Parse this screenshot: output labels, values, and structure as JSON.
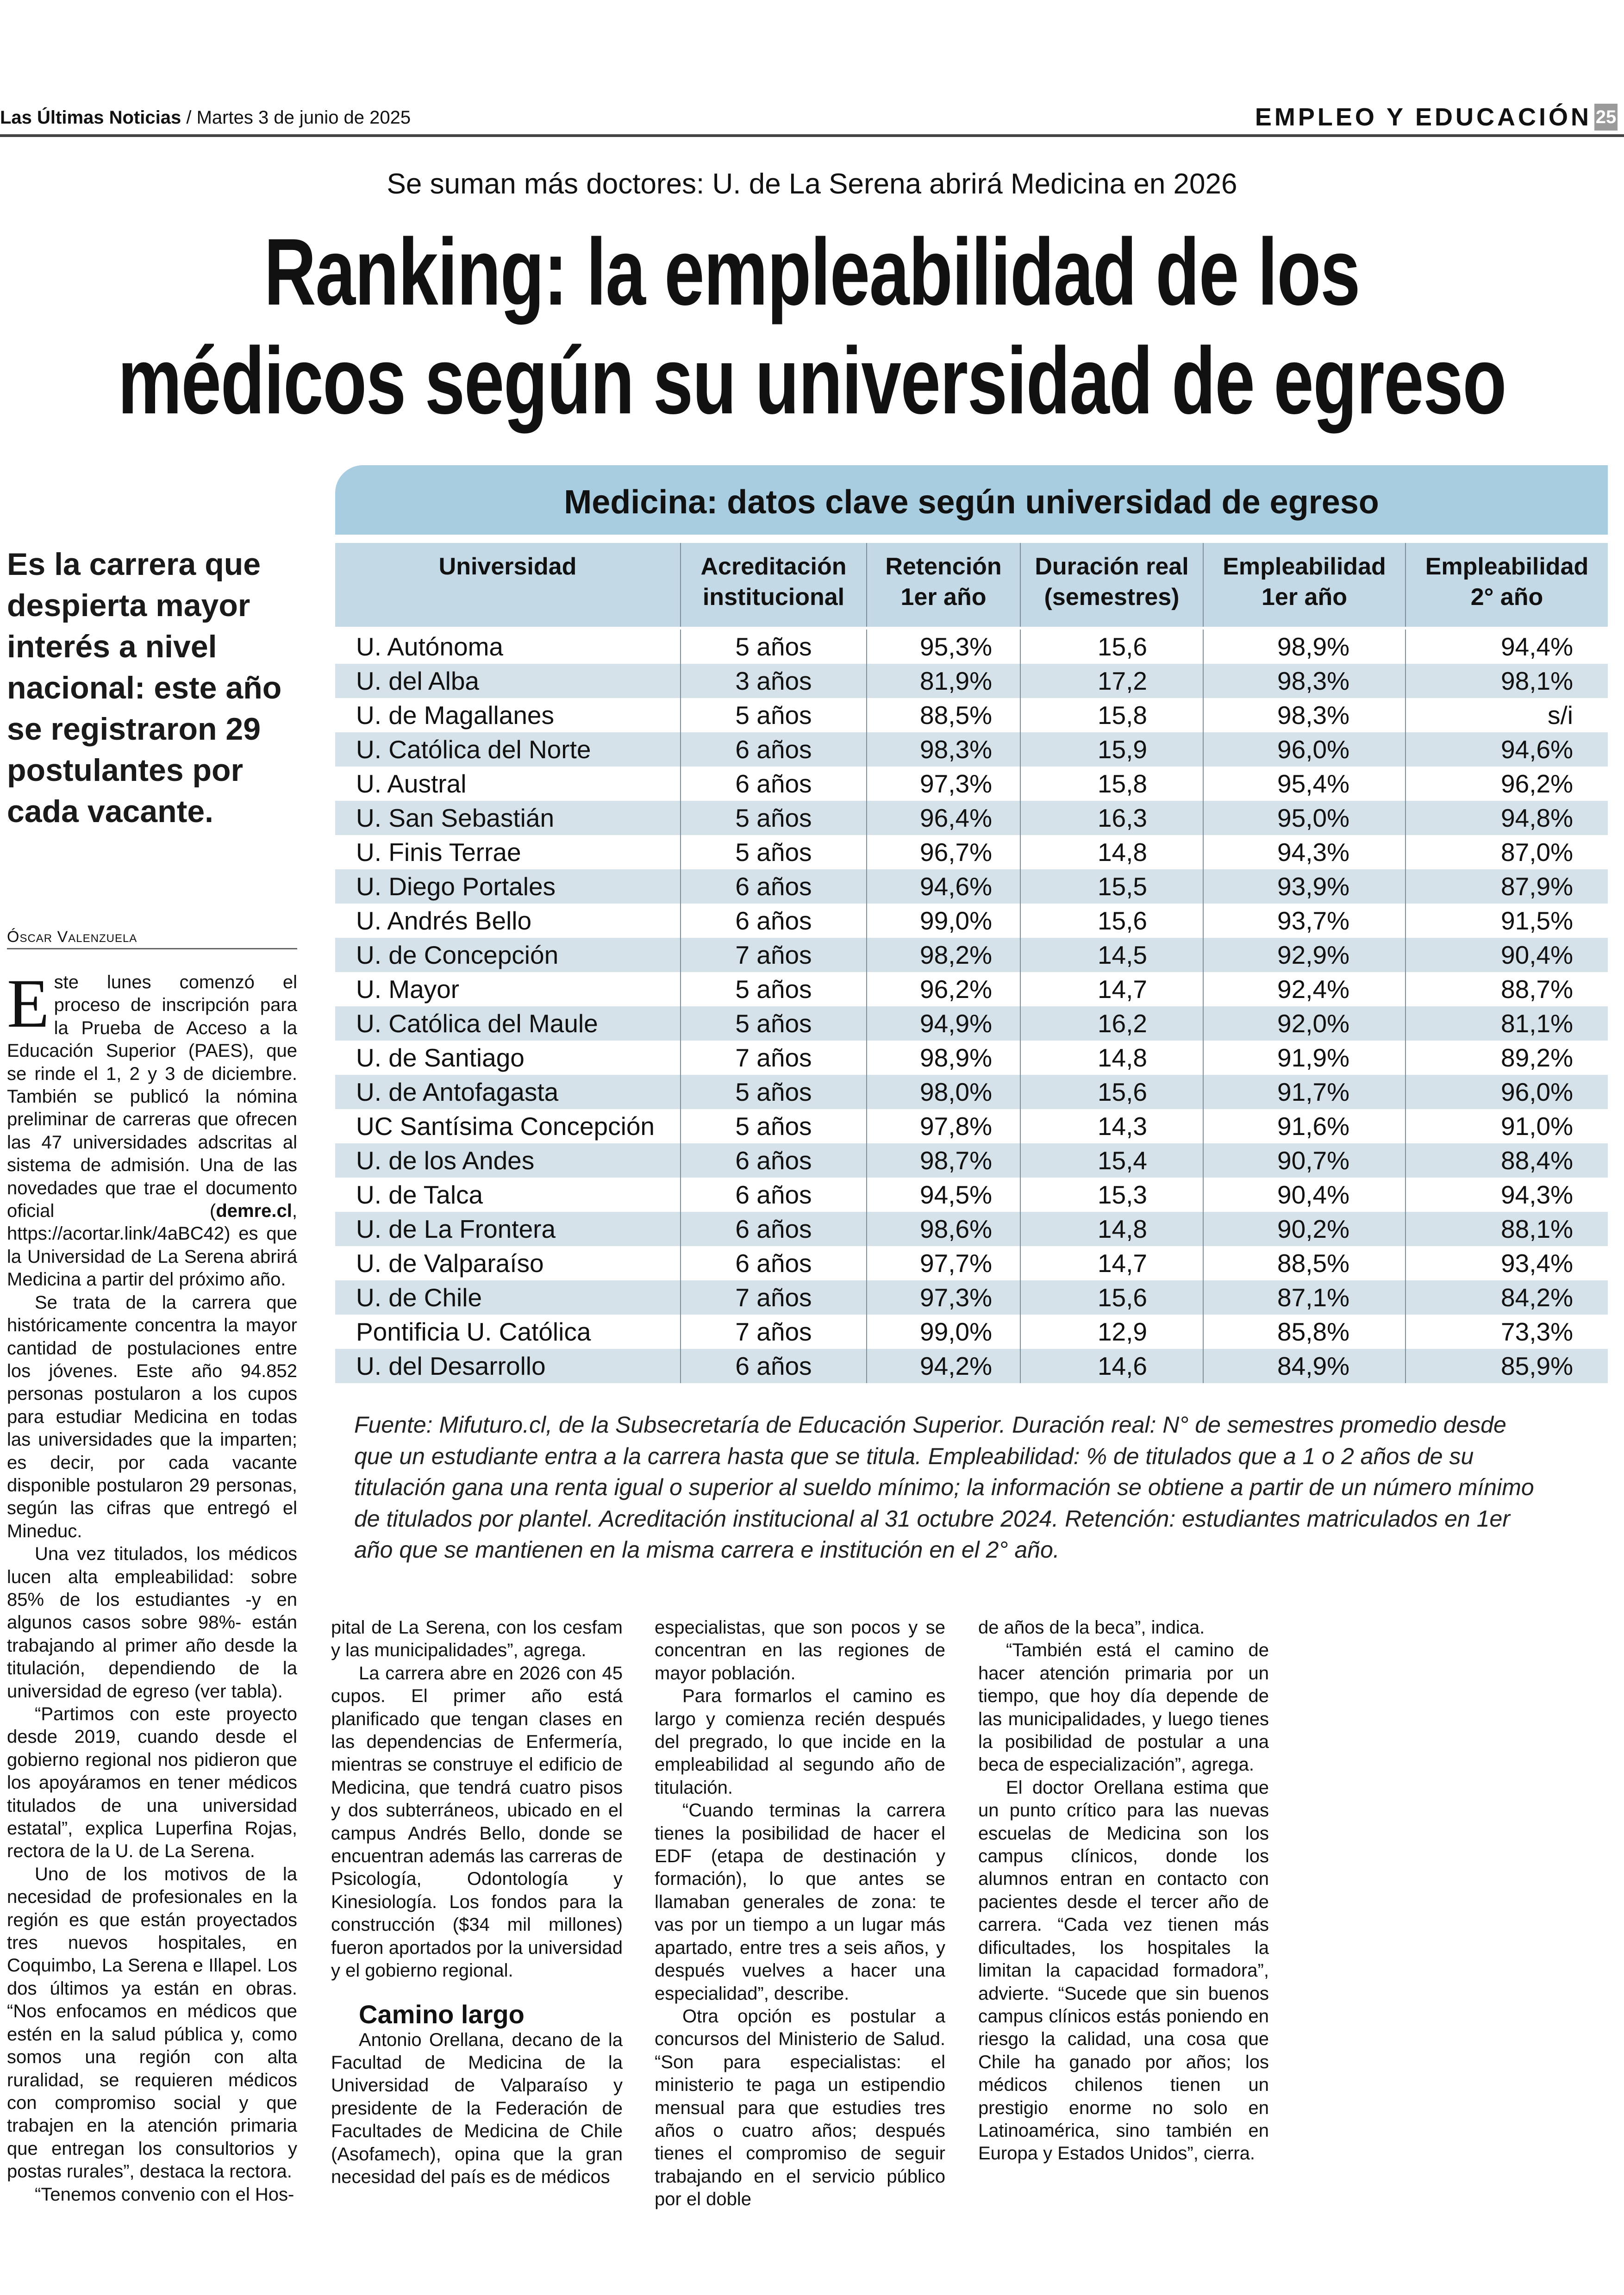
{
  "header": {
    "publication": "Las Últimas Noticias",
    "date": "/ Martes 3 de junio de 2025",
    "section": "EMPLEO Y EDUCACIÓN",
    "page": "25"
  },
  "article": {
    "kicker": "Se suman más doctores: U. de La Serena abrirá Medicina en 2026",
    "title_lines": [
      "Ranking: la empleabilidad de los",
      "médicos según su universidad de egreso"
    ],
    "deck": "Es la carrera que despierta mayor interés a nivel nacional: este año se registraron 29 postulantes por cada vacante.",
    "byline": "Óscar Valenzuela",
    "dropcap": "E",
    "p1_a": "ste lunes comenzó el proceso de inscripción para la Prueba de Acceso a la Educación Superior (PAES), que se rinde el 1, 2 y 3 de diciembre. También se publicó la nómina preliminar de carreras que ofrecen las 47 universidades adscritas al sistema de admisión. Una de las novedades que trae el documento oficial (",
    "p1_bold": "demre.cl",
    "p1_b": ", https://acortar.link/4aBC42) es que la Universidad de La Serena abrirá Medicina a partir del próximo año.",
    "col1": [
      "Se trata de la carrera que históricamente concentra la mayor cantidad de postulaciones entre los jóvenes. Este año 94.852 personas postularon a los cupos para estudiar Medicina en todas las universidades que la imparten; es decir, por cada vacante disponible postularon 29 personas, según las cifras que entregó el Mineduc.",
      "Una vez titulados, los médicos lucen alta empleabilidad: sobre 85% de los estudiantes -y en algunos casos sobre 98%- están trabajando al primer año desde la titulación, dependiendo de la universidad de egreso (ver tabla).",
      "“Partimos con este proyecto desde 2019, cuando desde el gobierno regional nos pidieron que los apoyáramos en tener médicos titulados de una universidad estatal”, explica Luperfina Rojas, rectora de la U. de La Serena.",
      "Uno de los motivos de la necesidad de profesionales en la región es que están proyectados tres nuevos hospitales, en Coquimbo, La Serena e Illapel. Los dos últimos ya están en obras. “Nos enfocamos en médicos que estén en la salud pública y, como somos una región con alta ruralidad, se requieren médicos con compromiso social y que trabajen en la atención primaria que entregan los consultorios y postas rurales”, destaca la rectora.",
      "“Tenemos convenio con el Hos-"
    ],
    "col2": [
      "pital de La Serena, con los cesfam y las municipalidades”, agrega.",
      "La carrera abre en 2026 con 45 cupos. El primer año está planificado que tengan clases en las dependencias de Enfermería, mientras se construye el edificio de Medicina, que tendrá cuatro pisos y dos subterráneos, ubicado en el campus Andrés Bello, donde se encuentran además las carreras de Psicología, Odontología y Kinesiología. Los fondos para la construcción ($34 mil millones) fueron aportados por la universidad y el gobierno regional."
    ],
    "subhead": "Camino largo",
    "col2_after": "Antonio Orellana, decano de la Facultad de Medicina de la Universidad de Valparaíso y presidente de la Federación de Facultades de Medicina de Chile (Asofamech), opina que la gran necesidad del país es de médicos",
    "col3": [
      "especialistas, que son pocos y se concentran en las regiones de mayor población.",
      "Para formarlos el camino es largo y comienza recién después del pregrado, lo que incide en la empleabilidad al segundo año de titulación.",
      "“Cuando terminas la carrera tienes la posibilidad de hacer el EDF (etapa de destinación y formación), lo que antes se llamaban generales de zona: te vas por un tiempo a un lugar más apartado, entre tres a seis años, y después vuelves a hacer una especialidad”, describe.",
      "Otra opción es postular a concursos del Ministerio de Salud. “Son para especialistas: el ministerio te paga un estipendio mensual para que estudies tres años o cuatro años; después tienes el compromiso de seguir trabajando en el servicio público por el doble"
    ],
    "col4": [
      "de años de la beca”, indica.",
      "“También está el camino de hacer atención primaria por un tiempo, que hoy día depende de las municipalidades, y luego tienes la posibilidad de postular a una beca de especialización”, agrega.",
      "El doctor Orellana estima que un punto crítico para las nuevas escuelas de Medicina son los campus clínicos, donde los alumnos entran en contacto con pacientes desde el tercer año de carrera. “Cada vez tienen más dificultades, los hospitales la limitan la capacidad formadora”, advierte. “Sucede que sin buenos campus clínicos estás poniendo en riesgo la calidad, una cosa que Chile ha ganado por años; los médicos chilenos tienen un prestigio enorme no solo en Latinoamérica, sino también en Europa y Estados Unidos”, cierra."
    ]
  },
  "table": {
    "title": "Medicina: datos clave según universidad de egreso",
    "colors": {
      "title_band": "#a8cce0",
      "header": "#c3d9e6",
      "alt_row": "#d5e2ea"
    },
    "columns": [
      [
        "Universidad",
        ""
      ],
      [
        "Acreditación",
        "institucional"
      ],
      [
        "Retención",
        "1er año"
      ],
      [
        "Duración real",
        "(semestres)"
      ],
      [
        "Empleabilidad",
        "1er año"
      ],
      [
        "Empleabilidad",
        "2° año"
      ]
    ],
    "rows": [
      [
        "U. Autónoma",
        "5 años",
        "95,3%",
        "15,6",
        "98,9%",
        "94,4%"
      ],
      [
        "U. del Alba",
        "3 años",
        "81,9%",
        "17,2",
        "98,3%",
        "98,1%"
      ],
      [
        "U. de Magallanes",
        "5 años",
        "88,5%",
        "15,8",
        "98,3%",
        "s/i"
      ],
      [
        "U. Católica del Norte",
        "6 años",
        "98,3%",
        "15,9",
        "96,0%",
        "94,6%"
      ],
      [
        "U. Austral",
        "6 años",
        "97,3%",
        "15,8",
        "95,4%",
        "96,2%"
      ],
      [
        "U. San Sebastián",
        "5 años",
        "96,4%",
        "16,3",
        "95,0%",
        "94,8%"
      ],
      [
        "U. Finis Terrae",
        "5 años",
        "96,7%",
        "14,8",
        "94,3%",
        "87,0%"
      ],
      [
        "U. Diego Portales",
        "6 años",
        "94,6%",
        "15,5",
        "93,9%",
        "87,9%"
      ],
      [
        "U. Andrés Bello",
        "6 años",
        "99,0%",
        "15,6",
        "93,7%",
        "91,5%"
      ],
      [
        "U. de Concepción",
        "7 años",
        "98,2%",
        "14,5",
        "92,9%",
        "90,4%"
      ],
      [
        "U. Mayor",
        "5 años",
        "96,2%",
        "14,7",
        "92,4%",
        "88,7%"
      ],
      [
        "U. Católica del Maule",
        "5 años",
        "94,9%",
        "16,2",
        "92,0%",
        "81,1%"
      ],
      [
        "U. de Santiago",
        "7 años",
        "98,9%",
        "14,8",
        "91,9%",
        "89,2%"
      ],
      [
        "U. de Antofagasta",
        "5 años",
        "98,0%",
        "15,6",
        "91,7%",
        "96,0%"
      ],
      [
        "UC Santísima Concepción",
        "5 años",
        "97,8%",
        "14,3",
        "91,6%",
        "91,0%"
      ],
      [
        "U. de los Andes",
        "6 años",
        "98,7%",
        "15,4",
        "90,7%",
        "88,4%"
      ],
      [
        "U. de Talca",
        "6 años",
        "94,5%",
        "15,3",
        "90,4%",
        "94,3%"
      ],
      [
        "U. de La Frontera",
        "6 años",
        "98,6%",
        "14,8",
        "90,2%",
        "88,1%"
      ],
      [
        "U. de Valparaíso",
        "6 años",
        "97,7%",
        "14,7",
        "88,5%",
        "93,4%"
      ],
      [
        "U. de Chile",
        "7 años",
        "97,3%",
        "15,6",
        "87,1%",
        "84,2%"
      ],
      [
        "Pontificia U. Católica",
        "7 años",
        "99,0%",
        "12,9",
        "85,8%",
        "73,3%"
      ],
      [
        "U. del Desarrollo",
        "6 años",
        "94,2%",
        "14,6",
        "84,9%",
        "85,9%"
      ]
    ],
    "note": "Fuente: Mifuturo.cl, de la Subsecretaría de Educación Superior. Duración real: N° de semestres promedio desde que un estudiante entra a la carrera hasta que se titula. Empleabilidad: % de titulados que a 1 o 2 años de su titulación gana una renta igual o superior al sueldo mínimo; la información se obtiene a partir de un número mínimo de titulados por plantel. Acreditación institucional al 31 octubre 2024. Retención: estudiantes matriculados en 1er año que se mantienen en la misma carrera e institución en el 2° año."
  }
}
